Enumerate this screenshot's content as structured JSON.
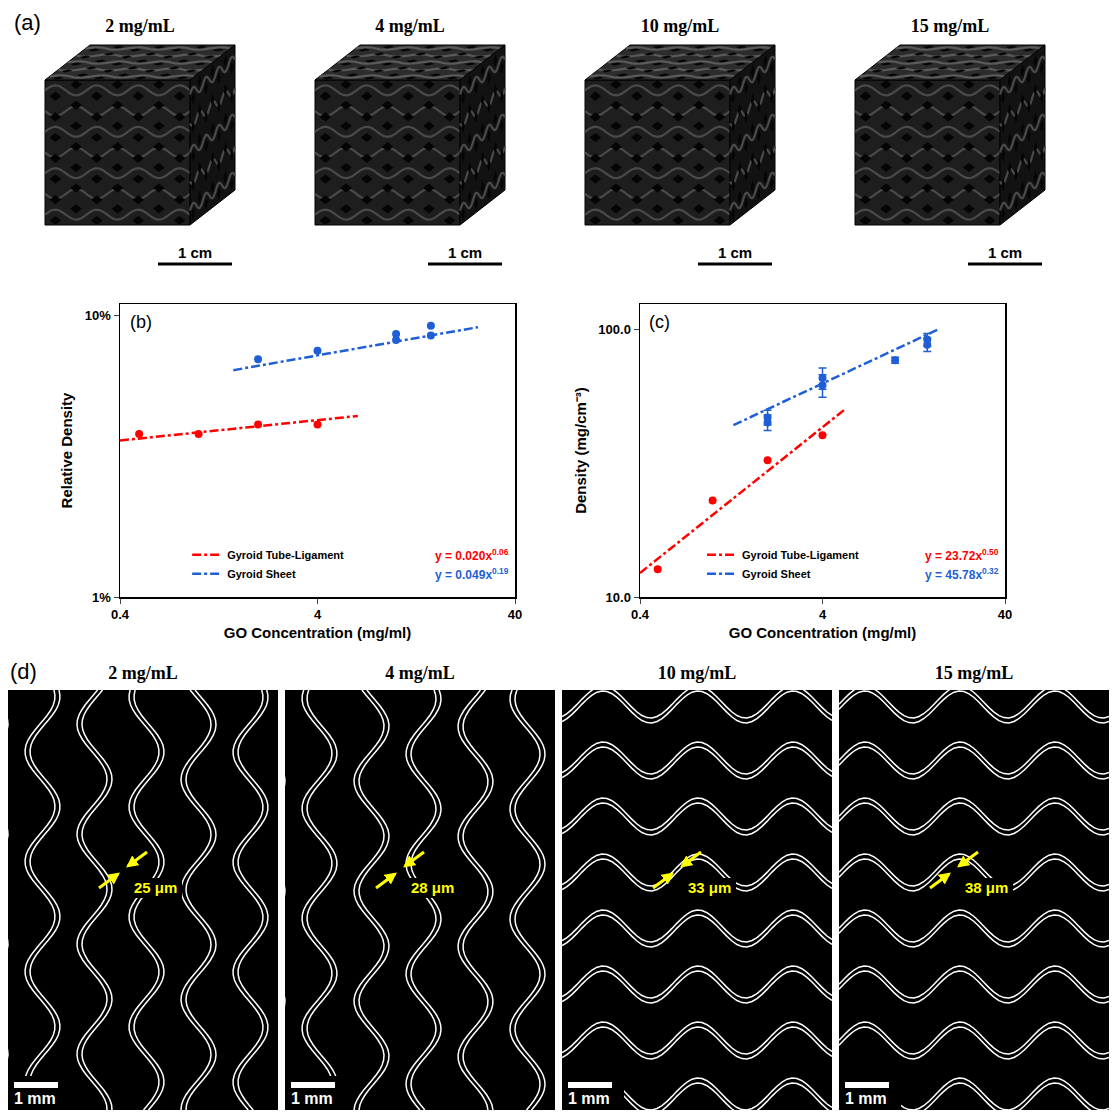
{
  "panel_a": {
    "label": "(a)",
    "panels": [
      {
        "title": "2 mg/mL",
        "scale_bar": "1 cm"
      },
      {
        "title": "4 mg/mL",
        "scale_bar": "1 cm"
      },
      {
        "title": "10 mg/mL",
        "scale_bar": "1 cm"
      },
      {
        "title": "15 mg/mL",
        "scale_bar": "1 cm"
      }
    ]
  },
  "chart_data": [
    {
      "type": "scatter",
      "label": "(b)",
      "x_label": "GO Concentration (mg/ml)",
      "y_label": "Relative Density",
      "log": true,
      "grid": false,
      "legend": "bottom",
      "xlim": [
        0.4,
        40
      ],
      "xticks": [
        0.4,
        4,
        40
      ],
      "ylim": [
        1,
        11
      ],
      "yticks": [
        {
          "value": 1,
          "label": "1%"
        },
        {
          "value": 10,
          "label": "10%"
        }
      ],
      "series": [
        {
          "name": "Gyroid Tube-Ligament",
          "color": "#ff0000",
          "marker": "circle",
          "line_style": "dashdot",
          "x": [
            0.5,
            1,
            2,
            4
          ],
          "values": [
            3.8,
            3.8,
            4.1,
            4.1
          ],
          "fit": {
            "x": [
              0.4,
              6.4
            ],
            "values": [
              3.6,
              4.4
            ],
            "equation": "y = 0.020x",
            "exponent": "0.06"
          }
        },
        {
          "name": "Gyroid Sheet",
          "color": "#1f5fd6",
          "marker": "circle",
          "line_style": "dashdot",
          "x": [
            2,
            4,
            10,
            10,
            15,
            15
          ],
          "values": [
            7.0,
            7.5,
            8.2,
            8.6,
            8.5,
            9.2
          ],
          "fit": {
            "x": [
              1.5,
              26
            ],
            "values": [
              6.4,
              9.1
            ],
            "equation": "y = 0.049x",
            "exponent": "0.19"
          }
        }
      ]
    },
    {
      "type": "scatter",
      "label": "(c)",
      "x_label": "GO Concentration (mg/ml)",
      "y_label": "Density (mg/cm⁻³)",
      "log": true,
      "grid": false,
      "legend": "bottom",
      "xlim": [
        0.4,
        40
      ],
      "xticks": [
        0.4,
        4,
        40
      ],
      "ylim": [
        10,
        125
      ],
      "yticks": [
        {
          "value": 10,
          "label": "10.0"
        },
        {
          "value": 100,
          "label": "100.0"
        }
      ],
      "series": [
        {
          "name": "Gyroid Tube-Ligament",
          "color": "#ff0000",
          "marker": "circle",
          "line_style": "dashdot",
          "x": [
            0.5,
            1,
            2,
            4
          ],
          "values": [
            12.7,
            23,
            32.5,
            40.3
          ],
          "fit": {
            "x": [
              0.4,
              5.4
            ],
            "values": [
              12.3,
              50.9
            ],
            "equation": "y = 23.72x",
            "exponent": "0.50"
          }
        },
        {
          "name": "Gyroid Sheet",
          "color": "#1f5fd6",
          "marker": "circle",
          "line_style": "dashdot",
          "x": [
            2,
            2,
            4,
            4,
            10,
            15,
            15
          ],
          "values": [
            47,
            45,
            62,
            66,
            77,
            92,
            88
          ],
          "errors": [
            3,
            3,
            6,
            6,
            2,
            5,
            5
          ],
          "fit": {
            "x": [
              1.3,
              17
            ],
            "values": [
              44,
              100
            ],
            "equation": "y = 45.78x",
            "exponent": "0.32"
          }
        }
      ]
    }
  ],
  "panel_d": {
    "label": "(d)",
    "panels": [
      {
        "title": "2 mg/mL",
        "scale_bar": "1 mm",
        "thickness": "25 μm"
      },
      {
        "title": "4 mg/mL",
        "scale_bar": "1 mm",
        "thickness": "28 μm"
      },
      {
        "title": "10 mg/mL",
        "scale_bar": "1 mm",
        "thickness": "33 μm"
      },
      {
        "title": "15 mg/mL",
        "scale_bar": "1 mm",
        "thickness": "38 μm"
      }
    ]
  }
}
